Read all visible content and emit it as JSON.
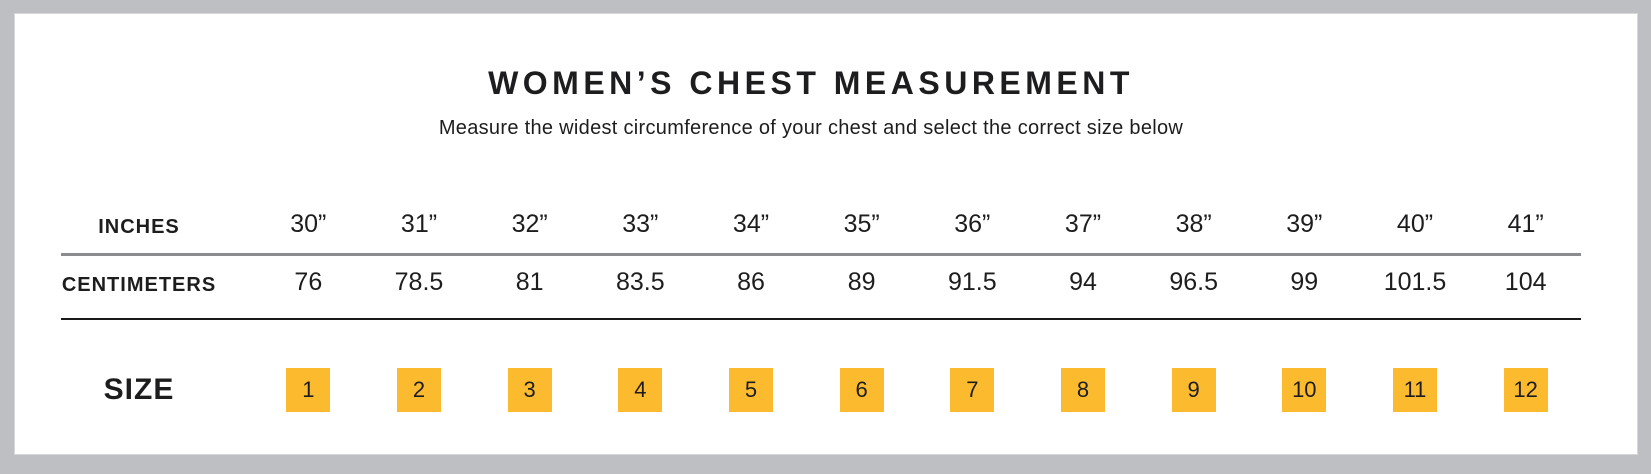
{
  "chart_data": {
    "type": "table",
    "title": "WOMEN’S CHEST MEASUREMENT",
    "subtitle": "Measure the widest circumference of your chest and select the correct size below",
    "rows": [
      {
        "label": "INCHES",
        "values": [
          "30”",
          "31”",
          "32”",
          "33”",
          "34”",
          "35”",
          "36”",
          "37”",
          "38”",
          "39”",
          "40”",
          "41”"
        ]
      },
      {
        "label": "CENTIMETERS",
        "values": [
          76,
          78.5,
          81,
          83.5,
          86,
          89,
          91.5,
          94,
          96.5,
          99,
          101.5,
          104
        ]
      },
      {
        "label": "SIZE",
        "values": [
          1,
          2,
          3,
          4,
          5,
          6,
          7,
          8,
          9,
          10,
          11,
          12
        ]
      }
    ],
    "layout_hints": {
      "columns": 12,
      "grid": "two horizontal dividers between rows",
      "size_values_shown_as": "amber squares"
    }
  },
  "colors": {
    "accent_amber": "#FCBB2E",
    "frame_gray": "#BDBFC2",
    "divider_gray": "#8A8C8E",
    "divider_black": "#1A1A1A",
    "text_black": "#1D1D1F"
  }
}
